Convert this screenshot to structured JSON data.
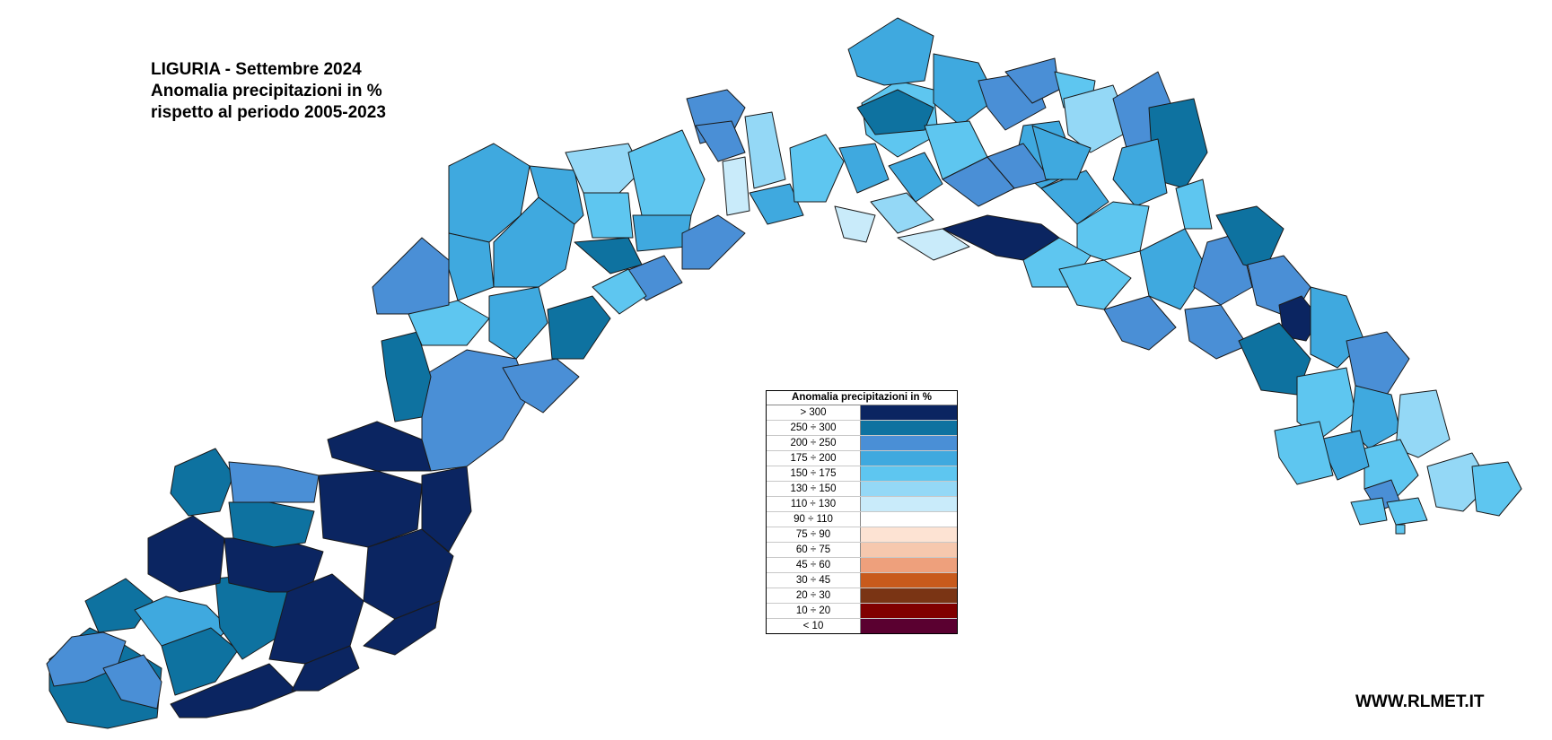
{
  "title": {
    "line1": "LIGURIA - Settembre 2024",
    "line2": "Anomalia precipitazioni in %",
    "line3": "rispetto al periodo 2005-2023"
  },
  "legend": {
    "title": "Anomalia precipitazioni in %",
    "classes": [
      {
        "label": "> 300",
        "color": "#0b2561"
      },
      {
        "label": "250 ÷ 300",
        "color": "#0e72a0"
      },
      {
        "label": "200 ÷ 250",
        "color": "#4a8fd6"
      },
      {
        "label": "175 ÷ 200",
        "color": "#3fa9df"
      },
      {
        "label": "150 ÷ 175",
        "color": "#5ec6f0"
      },
      {
        "label": "130 ÷ 150",
        "color": "#94d8f6"
      },
      {
        "label": "110 ÷ 130",
        "color": "#c9ebfa"
      },
      {
        "label": "90 ÷ 110",
        "color": "#ffffff"
      },
      {
        "label": "75 ÷ 90",
        "color": "#fde3d3"
      },
      {
        "label": "60 ÷ 75",
        "color": "#f6c8ae"
      },
      {
        "label": "45 ÷ 60",
        "color": "#eea07c"
      },
      {
        "label": "30 ÷ 45",
        "color": "#c85a1c"
      },
      {
        "label": "20 ÷ 30",
        "color": "#7a3414"
      },
      {
        "label": "10 ÷ 20",
        "color": "#800000"
      },
      {
        "label": "< 10",
        "color": "#5a0030"
      }
    ]
  },
  "footer": {
    "website": "WWW.RLMET.IT"
  },
  "map_data": {
    "region": "Liguria",
    "municipalities_shown_by_class": {
      "> 300": "far west interior (Imperia province) and east of Genova, one in Val di Vara",
      "250 ÷ 300": "scattered west coast and interior",
      "200 ÷ 250": "interior Savona and La Spezia provinces",
      "175 ÷ 200": "much of Savona and Genova interior",
      "150 ÷ 175": "Genova coast and Tigullio",
      "130 ÷ 150": "scattered, Cinque Terre",
      "110 ÷ 130": "few near Genova"
    }
  }
}
